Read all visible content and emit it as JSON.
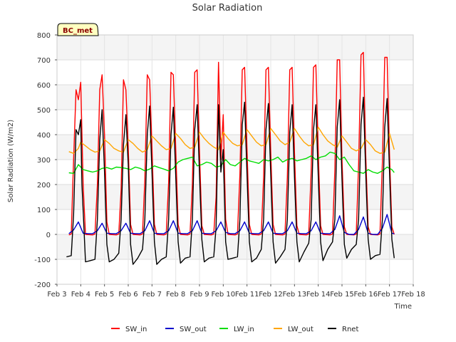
{
  "chart_data": {
    "type": "line",
    "title": "Solar Radiation",
    "badge": "BC_met",
    "xlabel": "Time",
    "ylabel": "Solar Radiation (W/m2)",
    "xlim": [
      3,
      18
    ],
    "ylim": [
      -200,
      800
    ],
    "x_ticks": [
      3,
      4,
      5,
      6,
      7,
      8,
      9,
      10,
      11,
      12,
      13,
      14,
      15,
      16,
      17,
      18
    ],
    "x_tick_labels": [
      "Feb 3",
      "Feb 4",
      "Feb 5",
      "Feb 6",
      "Feb 7",
      "Feb 8",
      "Feb 9",
      "Feb 10",
      "Feb 11",
      "Feb 12",
      "Feb 13",
      "Feb 14",
      "Feb 15",
      "Feb 16",
      "Feb 17",
      "Feb 18"
    ],
    "y_ticks": [
      -200,
      -100,
      0,
      100,
      200,
      300,
      400,
      500,
      600,
      700,
      800
    ],
    "y_tick_labels": [
      "-200",
      "-100",
      "0",
      "100",
      "200",
      "300",
      "400",
      "500",
      "600",
      "700",
      "800"
    ],
    "grid": true,
    "legend_position": "bottom",
    "series": [
      {
        "name": "SW_in",
        "color": "#ff0000",
        "x": [
          3.5,
          3.6,
          3.7,
          3.8,
          3.9,
          4.0,
          4.1,
          4.2,
          4.5,
          4.6,
          4.7,
          4.8,
          4.9,
          5.0,
          5.1,
          5.2,
          5.5,
          5.6,
          5.7,
          5.8,
          5.9,
          6.0,
          6.1,
          6.2,
          6.5,
          6.6,
          6.7,
          6.8,
          6.9,
          7.0,
          7.1,
          7.2,
          7.5,
          7.6,
          7.7,
          7.8,
          7.9,
          8.0,
          8.1,
          8.2,
          8.5,
          8.6,
          8.7,
          8.8,
          8.9,
          9.0,
          9.1,
          9.2,
          9.5,
          9.6,
          9.7,
          9.8,
          9.9,
          10.0,
          10.1,
          10.2,
          10.5,
          10.6,
          10.7,
          10.8,
          10.9,
          11.0,
          11.1,
          11.2,
          11.5,
          11.6,
          11.7,
          11.8,
          11.9,
          12.0,
          12.1,
          12.2,
          12.5,
          12.6,
          12.7,
          12.8,
          12.9,
          13.0,
          13.1,
          13.2,
          13.5,
          13.6,
          13.7,
          13.8,
          13.9,
          14.0,
          14.1,
          14.2,
          14.5,
          14.6,
          14.7,
          14.8,
          14.9,
          15.0,
          15.1,
          15.2,
          15.5,
          15.6,
          15.7,
          15.8,
          15.9,
          16.0,
          16.1,
          16.2,
          16.5,
          16.6,
          16.7,
          16.8,
          16.9,
          17.0,
          17.1,
          17.2
        ],
        "y": [
          -2,
          2,
          300,
          580,
          540,
          610,
          200,
          0,
          -2,
          2,
          200,
          580,
          640,
          400,
          50,
          0,
          -2,
          2,
          180,
          620,
          580,
          350,
          40,
          0,
          -2,
          2,
          220,
          640,
          620,
          350,
          40,
          0,
          -2,
          2,
          210,
          650,
          640,
          340,
          40,
          0,
          -2,
          2,
          200,
          650,
          660,
          330,
          35,
          0,
          -2,
          2,
          150,
          690,
          300,
          480,
          60,
          0,
          -2,
          2,
          240,
          660,
          670,
          340,
          40,
          0,
          -2,
          2,
          230,
          660,
          670,
          330,
          40,
          0,
          -2,
          2,
          230,
          660,
          670,
          330,
          35,
          0,
          -2,
          2,
          250,
          670,
          680,
          330,
          35,
          0,
          -2,
          2,
          260,
          700,
          700,
          300,
          30,
          0,
          -2,
          2,
          280,
          720,
          730,
          320,
          30,
          0,
          -2,
          2,
          290,
          710,
          710,
          320,
          30,
          0
        ]
      },
      {
        "name": "SW_out",
        "color": "#0000cc",
        "x": [
          3.5,
          3.7,
          3.9,
          4.1,
          4.3,
          4.5,
          4.7,
          4.9,
          5.1,
          5.3,
          5.5,
          5.7,
          5.9,
          6.1,
          6.3,
          6.5,
          6.7,
          6.9,
          7.1,
          7.3,
          7.5,
          7.7,
          7.9,
          8.1,
          8.3,
          8.5,
          8.7,
          8.9,
          9.1,
          9.3,
          9.5,
          9.7,
          9.9,
          10.1,
          10.3,
          10.5,
          10.7,
          10.9,
          11.1,
          11.3,
          11.5,
          11.7,
          11.9,
          12.1,
          12.3,
          12.5,
          12.7,
          12.9,
          13.1,
          13.3,
          13.5,
          13.7,
          13.9,
          14.1,
          14.3,
          14.5,
          14.7,
          14.9,
          15.1,
          15.3,
          15.5,
          15.7,
          15.9,
          16.1,
          16.3,
          16.5,
          16.7,
          16.9,
          17.1,
          17.2
        ],
        "y": [
          3,
          18,
          50,
          5,
          3,
          3,
          15,
          45,
          5,
          3,
          3,
          15,
          45,
          5,
          3,
          3,
          15,
          55,
          5,
          3,
          3,
          15,
          55,
          5,
          3,
          3,
          15,
          55,
          5,
          3,
          3,
          15,
          50,
          8,
          3,
          3,
          15,
          50,
          5,
          3,
          3,
          15,
          50,
          5,
          3,
          3,
          15,
          50,
          5,
          3,
          3,
          15,
          50,
          5,
          3,
          3,
          20,
          75,
          8,
          0,
          0,
          20,
          70,
          5,
          0,
          0,
          25,
          80,
          5,
          3
        ]
      },
      {
        "name": "LW_in",
        "color": "#00dd00",
        "x": [
          3.5,
          3.7,
          3.9,
          4.1,
          4.3,
          4.5,
          4.7,
          4.9,
          5.1,
          5.3,
          5.5,
          5.7,
          5.9,
          6.1,
          6.3,
          6.5,
          6.7,
          6.9,
          7.1,
          7.3,
          7.5,
          7.7,
          7.9,
          8.1,
          8.3,
          8.5,
          8.7,
          8.9,
          9.1,
          9.3,
          9.5,
          9.7,
          9.9,
          10.1,
          10.3,
          10.5,
          10.7,
          10.9,
          11.1,
          11.3,
          11.5,
          11.7,
          11.9,
          12.1,
          12.3,
          12.5,
          12.7,
          12.9,
          13.1,
          13.3,
          13.5,
          13.7,
          13.9,
          14.1,
          14.3,
          14.5,
          14.7,
          14.9,
          15.1,
          15.3,
          15.5,
          15.7,
          15.9,
          16.1,
          16.3,
          16.5,
          16.7,
          16.9,
          17.1,
          17.2
        ],
        "y": [
          247,
          245,
          280,
          260,
          255,
          250,
          255,
          265,
          268,
          262,
          270,
          268,
          265,
          260,
          270,
          265,
          255,
          262,
          275,
          268,
          262,
          255,
          265,
          290,
          300,
          305,
          310,
          275,
          280,
          290,
          285,
          270,
          275,
          300,
          280,
          275,
          290,
          305,
          295,
          290,
          285,
          300,
          295,
          300,
          310,
          290,
          300,
          305,
          295,
          300,
          305,
          315,
          300,
          310,
          315,
          330,
          325,
          300,
          310,
          280,
          255,
          250,
          245,
          260,
          250,
          245,
          255,
          270,
          260,
          248
        ]
      },
      {
        "name": "LW_out",
        "color": "#ffa500",
        "x": [
          3.5,
          3.7,
          3.9,
          4.0,
          4.2,
          4.4,
          4.6,
          4.8,
          5.0,
          5.2,
          5.4,
          5.6,
          5.8,
          6.0,
          6.2,
          6.4,
          6.6,
          6.8,
          7.0,
          7.2,
          7.4,
          7.6,
          7.8,
          8.0,
          8.2,
          8.4,
          8.6,
          8.8,
          9.0,
          9.2,
          9.4,
          9.6,
          9.8,
          10.0,
          10.2,
          10.4,
          10.6,
          10.8,
          11.0,
          11.2,
          11.4,
          11.6,
          11.8,
          12.0,
          12.2,
          12.4,
          12.6,
          12.8,
          13.0,
          13.2,
          13.4,
          13.6,
          13.8,
          14.0,
          14.2,
          14.4,
          14.6,
          14.8,
          15.0,
          15.2,
          15.4,
          15.6,
          15.8,
          16.0,
          16.2,
          16.4,
          16.6,
          16.8,
          17.0,
          17.2
        ],
        "y": [
          332,
          325,
          345,
          370,
          355,
          340,
          330,
          335,
          380,
          365,
          345,
          335,
          330,
          380,
          365,
          345,
          330,
          340,
          395,
          375,
          355,
          340,
          345,
          405,
          385,
          360,
          345,
          350,
          410,
          385,
          365,
          350,
          340,
          410,
          385,
          365,
          355,
          360,
          420,
          395,
          370,
          355,
          360,
          425,
          400,
          375,
          360,
          370,
          425,
          395,
          370,
          355,
          360,
          430,
          400,
          375,
          360,
          350,
          395,
          370,
          345,
          335,
          345,
          380,
          360,
          335,
          325,
          330,
          405,
          340
        ]
      },
      {
        "name": "Rnet",
        "color": "#000000",
        "x": [
          3.4,
          3.6,
          3.7,
          3.8,
          3.9,
          4.0,
          4.05,
          4.2,
          4.4,
          4.6,
          4.7,
          4.8,
          4.9,
          5.0,
          5.1,
          5.2,
          5.4,
          5.6,
          5.7,
          5.8,
          5.9,
          6.0,
          6.1,
          6.2,
          6.4,
          6.6,
          6.7,
          6.8,
          6.9,
          7.0,
          7.1,
          7.2,
          7.4,
          7.6,
          7.7,
          7.8,
          7.9,
          8.0,
          8.1,
          8.2,
          8.4,
          8.6,
          8.7,
          8.8,
          8.9,
          9.0,
          9.1,
          9.2,
          9.4,
          9.6,
          9.7,
          9.8,
          9.9,
          10.0,
          10.1,
          10.2,
          10.4,
          10.6,
          10.7,
          10.8,
          10.9,
          11.0,
          11.1,
          11.2,
          11.4,
          11.6,
          11.7,
          11.8,
          11.9,
          12.0,
          12.1,
          12.2,
          12.4,
          12.6,
          12.7,
          12.8,
          12.9,
          13.0,
          13.1,
          13.2,
          13.4,
          13.6,
          13.7,
          13.8,
          13.9,
          14.0,
          14.1,
          14.2,
          14.4,
          14.6,
          14.7,
          14.8,
          14.9,
          15.0,
          15.1,
          15.2,
          15.4,
          15.6,
          15.7,
          15.8,
          15.9,
          16.0,
          16.1,
          16.2,
          16.4,
          16.6,
          16.7,
          16.8,
          16.9,
          17.0,
          17.1,
          17.2
        ],
        "y": [
          -90,
          -85,
          80,
          420,
          400,
          460,
          200,
          -110,
          -105,
          -100,
          60,
          380,
          500,
          250,
          -40,
          -110,
          -100,
          -75,
          60,
          360,
          480,
          280,
          -40,
          -120,
          -95,
          -60,
          60,
          400,
          515,
          250,
          -30,
          -120,
          -100,
          -90,
          60,
          400,
          510,
          230,
          -30,
          -115,
          -95,
          -90,
          60,
          420,
          520,
          240,
          -20,
          -110,
          -95,
          -90,
          30,
          520,
          250,
          340,
          -30,
          -100,
          -95,
          -90,
          60,
          440,
          530,
          240,
          -30,
          -110,
          -95,
          -60,
          60,
          420,
          525,
          240,
          -30,
          -115,
          -90,
          -60,
          60,
          410,
          520,
          230,
          -30,
          -110,
          -70,
          -35,
          60,
          420,
          520,
          230,
          -30,
          -105,
          -60,
          -30,
          60,
          430,
          540,
          220,
          -40,
          -95,
          -60,
          -40,
          60,
          440,
          550,
          250,
          -20,
          -100,
          -85,
          -80,
          60,
          430,
          545,
          250,
          -20,
          -95
        ]
      }
    ]
  }
}
